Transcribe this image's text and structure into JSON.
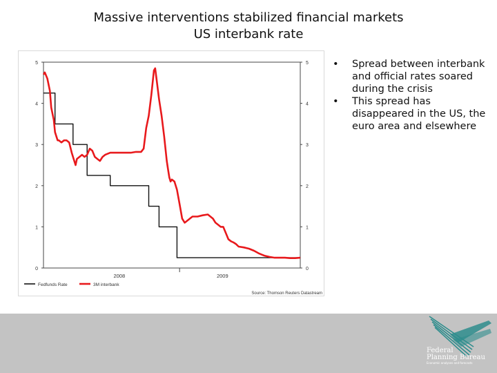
{
  "slide": {
    "title_line1": "Massive interventions stabilized financial markets",
    "title_line2": "US interbank rate",
    "bullets": [
      "Spread between interbank and official rates soared during the crisis",
      "This spread has disappeared in the US, the euro area and elsewhere"
    ],
    "bullet_symbol": "•"
  },
  "logo": {
    "line1": "Federal",
    "line2": "Planning Bureau",
    "tagline": "Economic analyses and forecasts",
    "color": "#ffffff"
  },
  "chart_data": {
    "type": "line",
    "title": "",
    "xlabel": "",
    "ylabel": "",
    "x_ticks": [
      "2008",
      "2009"
    ],
    "ylim": [
      0,
      5
    ],
    "y_ticks": [
      "0",
      "1",
      "2",
      "3",
      "4",
      "5"
    ],
    "source": "Source: Thomson Reuters Datastream",
    "legend_position": "bottom-left",
    "grid": false,
    "series": [
      {
        "name": "Fedfunds Rate",
        "color": "#111111",
        "step": true,
        "x": [
          0.0,
          0.04,
          0.045,
          0.11,
          0.115,
          0.16,
          0.17,
          0.26,
          0.4,
          0.41,
          0.44,
          0.45,
          0.51,
          0.52,
          1.0
        ],
        "y": [
          4.25,
          4.25,
          3.5,
          3.5,
          3.0,
          3.0,
          2.25,
          2.0,
          2.0,
          1.5,
          1.5,
          1.0,
          1.0,
          0.25,
          0.25
        ]
      },
      {
        "name": "3M interbank",
        "color": "#e8191c",
        "step": false,
        "x": [
          0.0,
          0.005,
          0.015,
          0.025,
          0.03,
          0.04,
          0.045,
          0.05,
          0.055,
          0.06,
          0.07,
          0.08,
          0.09,
          0.1,
          0.11,
          0.12,
          0.125,
          0.13,
          0.14,
          0.15,
          0.16,
          0.17,
          0.18,
          0.19,
          0.2,
          0.21,
          0.22,
          0.23,
          0.24,
          0.26,
          0.28,
          0.3,
          0.32,
          0.34,
          0.36,
          0.38,
          0.39,
          0.4,
          0.41,
          0.42,
          0.43,
          0.435,
          0.44,
          0.45,
          0.46,
          0.47,
          0.48,
          0.485,
          0.49,
          0.495,
          0.5,
          0.51,
          0.52,
          0.53,
          0.54,
          0.55,
          0.56,
          0.57,
          0.58,
          0.6,
          0.62,
          0.64,
          0.65,
          0.66,
          0.67,
          0.68,
          0.69,
          0.7,
          0.71,
          0.72,
          0.73,
          0.74,
          0.75,
          0.76,
          0.78,
          0.8,
          0.82,
          0.84,
          0.86,
          0.88,
          0.9,
          0.92,
          0.94,
          0.96,
          0.98,
          1.0
        ],
        "y": [
          4.7,
          4.75,
          4.6,
          4.3,
          3.9,
          3.6,
          3.3,
          3.2,
          3.1,
          3.1,
          3.05,
          3.1,
          3.1,
          3.05,
          2.8,
          2.6,
          2.5,
          2.65,
          2.7,
          2.75,
          2.7,
          2.75,
          2.9,
          2.85,
          2.7,
          2.65,
          2.6,
          2.7,
          2.75,
          2.8,
          2.8,
          2.8,
          2.8,
          2.8,
          2.82,
          2.82,
          2.9,
          3.4,
          3.7,
          4.2,
          4.8,
          4.85,
          4.6,
          4.1,
          3.7,
          3.2,
          2.6,
          2.4,
          2.2,
          2.1,
          2.15,
          2.1,
          1.9,
          1.55,
          1.2,
          1.1,
          1.15,
          1.2,
          1.25,
          1.25,
          1.28,
          1.3,
          1.25,
          1.2,
          1.1,
          1.05,
          1.0,
          1.0,
          0.85,
          0.7,
          0.65,
          0.62,
          0.58,
          0.52,
          0.5,
          0.47,
          0.42,
          0.35,
          0.3,
          0.27,
          0.25,
          0.25,
          0.25,
          0.24,
          0.24,
          0.25
        ]
      }
    ]
  }
}
